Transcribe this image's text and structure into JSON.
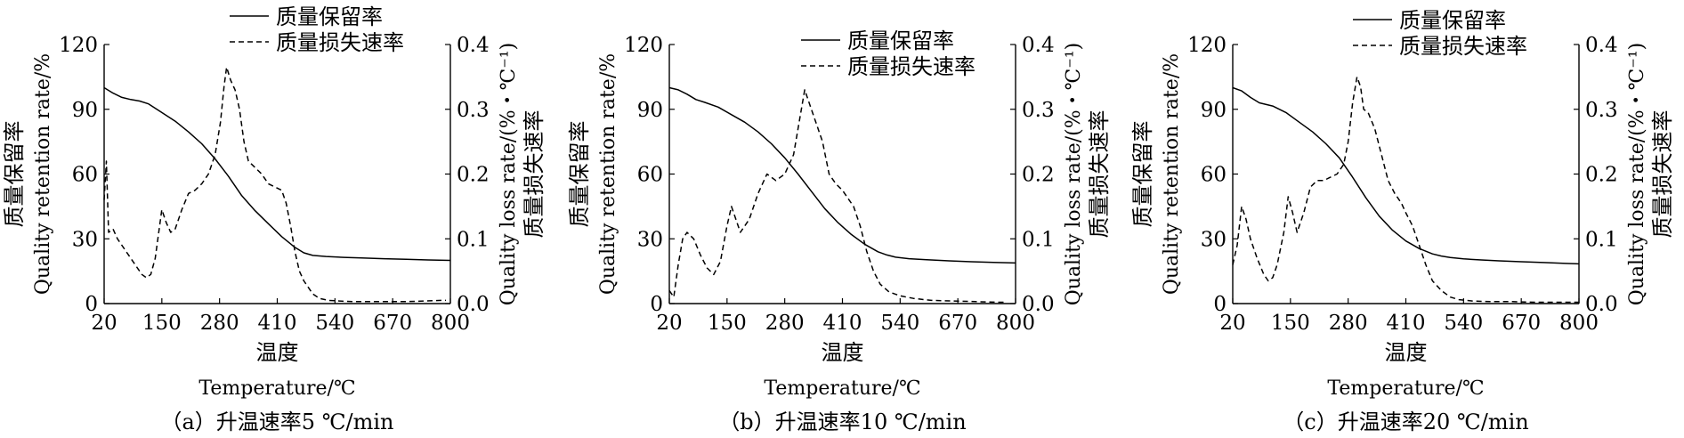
{
  "chart_data": [
    {
      "type": "line",
      "caption": "（a）升温速率5 ℃/min",
      "xlabel_cn": "温度",
      "xlabel": "Temperature/℃",
      "ylabel_left_cn": "质量保留率",
      "ylabel_left": "Quality retention rate/%",
      "ylabel_right": "Quality loss rate/(%・℃⁻¹)",
      "ylabel_right_cn": "质量损失速率",
      "xlim": [
        20,
        800
      ],
      "ylim_left": [
        0,
        120
      ],
      "ylim_right": [
        0.0,
        0.4
      ],
      "x_ticks": [
        "20",
        "150",
        "280",
        "410",
        "540",
        "670",
        "800"
      ],
      "y_left_ticks": [
        "0",
        "30",
        "60",
        "90",
        "120"
      ],
      "y_right_ticks": [
        "0.0",
        "0.1",
        "0.2",
        "0.3",
        "0.4"
      ],
      "legend_position": "top-right",
      "series": [
        {
          "name": "质量保留率",
          "axis": "left",
          "style": "solid",
          "x": [
            20,
            40,
            60,
            80,
            100,
            120,
            150,
            180,
            210,
            240,
            270,
            300,
            330,
            360,
            390,
            420,
            450,
            470,
            490,
            520,
            560,
            600,
            650,
            700,
            750,
            800
          ],
          "y": [
            100,
            97.5,
            95.5,
            94.5,
            93.8,
            92.5,
            88.5,
            84.5,
            79.5,
            74,
            67,
            59,
            50,
            43,
            37,
            31,
            26,
            23.5,
            22.3,
            21.8,
            21.4,
            21.1,
            20.8,
            20.5,
            20.2,
            20
          ]
        },
        {
          "name": "质量损失速率",
          "axis": "right",
          "style": "dashed",
          "x": [
            20,
            25,
            30,
            40,
            50,
            60,
            75,
            90,
            105,
            115,
            125,
            135,
            150,
            160,
            170,
            180,
            195,
            210,
            225,
            240,
            255,
            270,
            282,
            290,
            296,
            305,
            315,
            325,
            335,
            345,
            360,
            375,
            390,
            405,
            420,
            430,
            440,
            450,
            460,
            470,
            480,
            490,
            505,
            525,
            550,
            580,
            620,
            660,
            700,
            740,
            780,
            790
          ],
          "y": [
            0.16,
            0.22,
            0.11,
            0.115,
            0.1,
            0.09,
            0.075,
            0.06,
            0.045,
            0.04,
            0.045,
            0.07,
            0.145,
            0.125,
            0.11,
            0.115,
            0.145,
            0.17,
            0.175,
            0.185,
            0.2,
            0.23,
            0.28,
            0.335,
            0.365,
            0.345,
            0.33,
            0.3,
            0.25,
            0.22,
            0.21,
            0.2,
            0.185,
            0.18,
            0.175,
            0.155,
            0.12,
            0.08,
            0.05,
            0.035,
            0.025,
            0.015,
            0.008,
            0.005,
            0.004,
            0.003,
            0.003,
            0.003,
            0.003,
            0.004,
            0.005,
            0.005
          ]
        }
      ]
    },
    {
      "type": "line",
      "caption": "（b）升温速率10 ℃/min",
      "xlabel_cn": "温度",
      "xlabel": "Temperature/℃",
      "ylabel_left_cn": "质量保留率",
      "ylabel_left": "Quality retention rate/%",
      "ylabel_right": "Quality loss rate/(%・℃⁻¹)",
      "ylabel_right_cn": "质量损失速率",
      "xlim": [
        20,
        800
      ],
      "ylim_left": [
        0,
        120
      ],
      "ylim_right": [
        0.0,
        0.4
      ],
      "x_ticks": [
        "20",
        "150",
        "280",
        "410",
        "540",
        "670",
        "800"
      ],
      "y_left_ticks": [
        "0",
        "30",
        "60",
        "90",
        "120"
      ],
      "y_right_ticks": [
        "0.0",
        "0.1",
        "0.2",
        "0.3",
        "0.4"
      ],
      "legend_position": "top-right",
      "series": [
        {
          "name": "质量保留率",
          "axis": "left",
          "style": "solid",
          "x": [
            20,
            40,
            60,
            80,
            100,
            130,
            160,
            190,
            220,
            250,
            280,
            310,
            340,
            370,
            400,
            430,
            460,
            490,
            510,
            530,
            560,
            600,
            650,
            700,
            750,
            800
          ],
          "y": [
            100,
            99,
            97,
            94.5,
            93.2,
            91,
            87.5,
            84,
            79.5,
            74,
            67.5,
            60,
            52,
            44,
            37.5,
            32,
            27.5,
            24,
            22.5,
            21.5,
            20.8,
            20.3,
            19.8,
            19.4,
            19.1,
            18.8
          ]
        },
        {
          "name": "质量损失速率",
          "axis": "right",
          "style": "dashed",
          "x": [
            20,
            30,
            40,
            50,
            60,
            75,
            90,
            105,
            120,
            135,
            150,
            160,
            170,
            180,
            200,
            220,
            240,
            260,
            280,
            300,
            315,
            325,
            335,
            350,
            365,
            380,
            395,
            410,
            420,
            435,
            450,
            465,
            480,
            495,
            515,
            540,
            570,
            610,
            660,
            710,
            760,
            780
          ],
          "y": [
            0.02,
            0.01,
            0.06,
            0.1,
            0.11,
            0.1,
            0.075,
            0.055,
            0.045,
            0.065,
            0.12,
            0.15,
            0.13,
            0.11,
            0.13,
            0.17,
            0.2,
            0.19,
            0.2,
            0.23,
            0.29,
            0.33,
            0.31,
            0.28,
            0.25,
            0.2,
            0.185,
            0.175,
            0.165,
            0.15,
            0.12,
            0.08,
            0.05,
            0.03,
            0.018,
            0.012,
            0.008,
            0.005,
            0.004,
            0.003,
            0.002,
            0.002
          ]
        }
      ]
    },
    {
      "type": "line",
      "caption": "（c）升温速率20 ℃/min",
      "xlabel_cn": "温度",
      "xlabel": "Temperature/℃",
      "ylabel_left_cn": "质量保留率",
      "ylabel_left": "Quality retention rate/%",
      "ylabel_right": "Quality loss rate/(%・℃⁻¹)",
      "ylabel_right_cn": "质量损失速率",
      "xlim": [
        20,
        800
      ],
      "ylim_left": [
        0,
        120
      ],
      "ylim_right": [
        0.0,
        0.4
      ],
      "x_ticks": [
        "20",
        "150",
        "280",
        "410",
        "540",
        "670",
        "800"
      ],
      "y_left_ticks": [
        "0",
        "30",
        "60",
        "90",
        "120"
      ],
      "y_right_ticks": [
        "0.0",
        "0.1",
        "0.2",
        "0.3",
        "0.4"
      ],
      "legend_position": "top-right",
      "series": [
        {
          "name": "质量保留率",
          "axis": "left",
          "style": "solid",
          "x": [
            20,
            40,
            60,
            80,
            110,
            140,
            170,
            200,
            230,
            260,
            290,
            320,
            350,
            380,
            410,
            440,
            470,
            490,
            510,
            540,
            580,
            620,
            670,
            720,
            770,
            800
          ],
          "y": [
            100,
            98.5,
            95.5,
            93,
            91.5,
            88.5,
            84,
            79.5,
            74,
            67.5,
            58.5,
            49,
            40.5,
            34,
            29,
            25.5,
            23,
            22,
            21.3,
            20.7,
            20.2,
            19.8,
            19.4,
            19,
            18.6,
            18.4
          ]
        },
        {
          "name": "质量损失速率",
          "axis": "right",
          "style": "dashed",
          "x": [
            20,
            30,
            40,
            50,
            60,
            75,
            90,
            100,
            110,
            120,
            135,
            145,
            155,
            165,
            180,
            195,
            210,
            225,
            240,
            255,
            270,
            280,
            290,
            300,
            308,
            315,
            325,
            340,
            355,
            370,
            385,
            400,
            410,
            425,
            440,
            455,
            470,
            490,
            510,
            530,
            560,
            600,
            650,
            700,
            750,
            800
          ],
          "y": [
            0.06,
            0.09,
            0.15,
            0.13,
            0.1,
            0.07,
            0.045,
            0.035,
            0.04,
            0.06,
            0.11,
            0.165,
            0.14,
            0.11,
            0.14,
            0.18,
            0.19,
            0.19,
            0.195,
            0.2,
            0.215,
            0.25,
            0.31,
            0.35,
            0.335,
            0.3,
            0.295,
            0.27,
            0.23,
            0.19,
            0.17,
            0.155,
            0.14,
            0.12,
            0.09,
            0.06,
            0.035,
            0.02,
            0.01,
            0.006,
            0.004,
            0.003,
            0.003,
            0.002,
            0.002,
            0.002
          ]
        }
      ]
    }
  ]
}
